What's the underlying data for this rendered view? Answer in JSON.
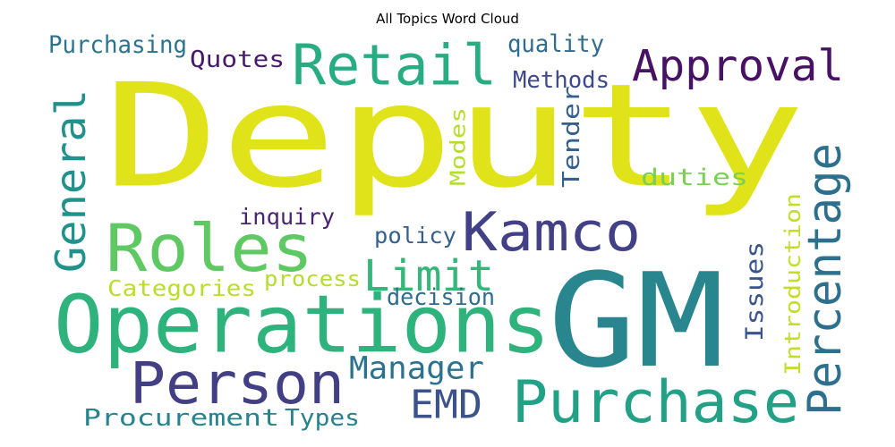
{
  "title": "All Topics Word Cloud",
  "words": [
    {
      "text": "Deputy",
      "color": "#e1e31a"
    },
    {
      "text": "GM",
      "color": "#2a868e"
    },
    {
      "text": "Operations",
      "color": "#2eb37c"
    },
    {
      "text": "Purchase",
      "color": "#23a186"
    },
    {
      "text": "Person",
      "color": "#433f85"
    },
    {
      "text": "Roles",
      "color": "#5ec962"
    },
    {
      "text": "Retail",
      "color": "#27ad81"
    },
    {
      "text": "Kamco",
      "color": "#424086"
    },
    {
      "text": "Approval",
      "color": "#471164"
    },
    {
      "text": "Percentage",
      "color": "#2d708e"
    },
    {
      "text": "General",
      "color": "#21918c"
    },
    {
      "text": "Limit",
      "color": "#35b779"
    },
    {
      "text": "Manager",
      "color": "#2c728e"
    },
    {
      "text": "EMD",
      "color": "#3b528b"
    },
    {
      "text": "Procurement",
      "color": "#25848e"
    },
    {
      "text": "Types",
      "color": "#26828e"
    },
    {
      "text": "Purchasing",
      "color": "#2c738e"
    },
    {
      "text": "Quotes",
      "color": "#481a6c"
    },
    {
      "text": "quality",
      "color": "#2f6c8e"
    },
    {
      "text": "Methods",
      "color": "#3e4989"
    },
    {
      "text": "Modes",
      "color": "#b5de2b"
    },
    {
      "text": "Tender",
      "color": "#355f8d"
    },
    {
      "text": "duties",
      "color": "#7ad151"
    },
    {
      "text": "Introduction",
      "color": "#c2df23"
    },
    {
      "text": "Issues",
      "color": "#3a548c"
    },
    {
      "text": "inquiry",
      "color": "#482475"
    },
    {
      "text": "policy",
      "color": "#355f8d"
    },
    {
      "text": "Categories",
      "color": "#b8de29"
    },
    {
      "text": "process",
      "color": "#b5de2b"
    },
    {
      "text": "decision",
      "color": "#2f6c8e"
    }
  ]
}
